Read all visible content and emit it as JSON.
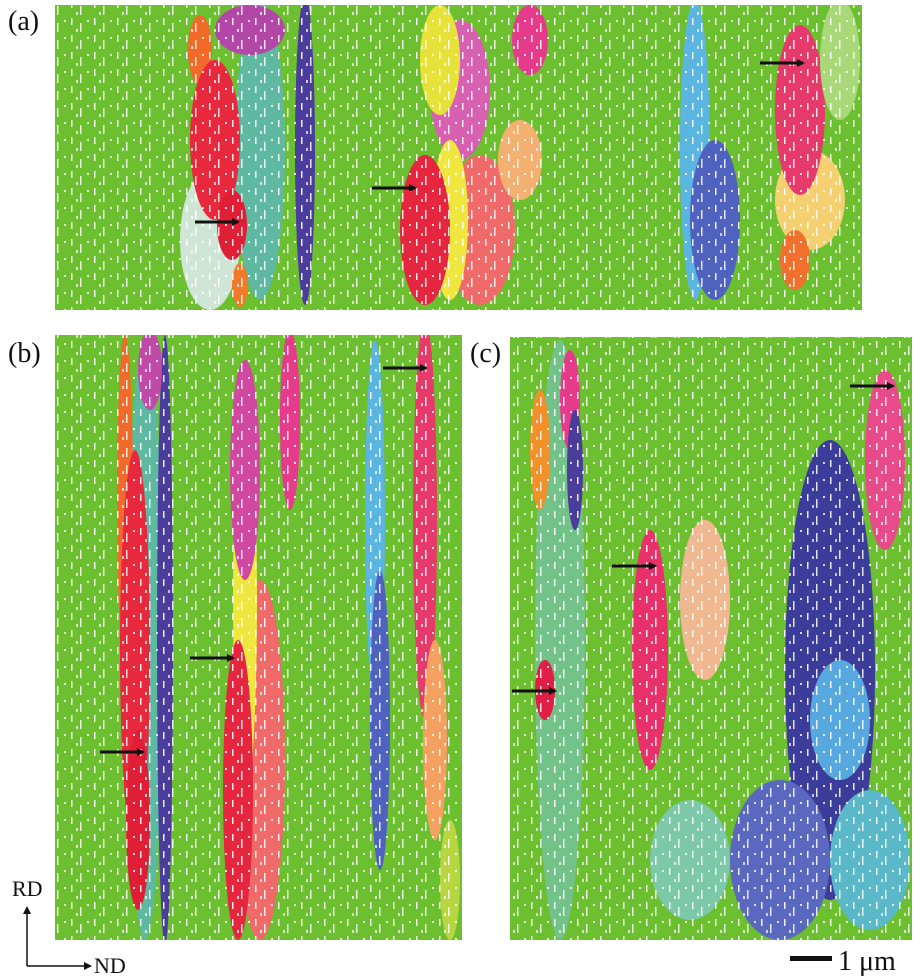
{
  "panels": [
    {
      "label": "(a)"
    },
    {
      "label": "(b)"
    },
    {
      "label": "(c)"
    }
  ],
  "axes": {
    "vertical": "RD",
    "horizontal": "ND"
  },
  "scale_bar": {
    "label": "1 μm"
  }
}
